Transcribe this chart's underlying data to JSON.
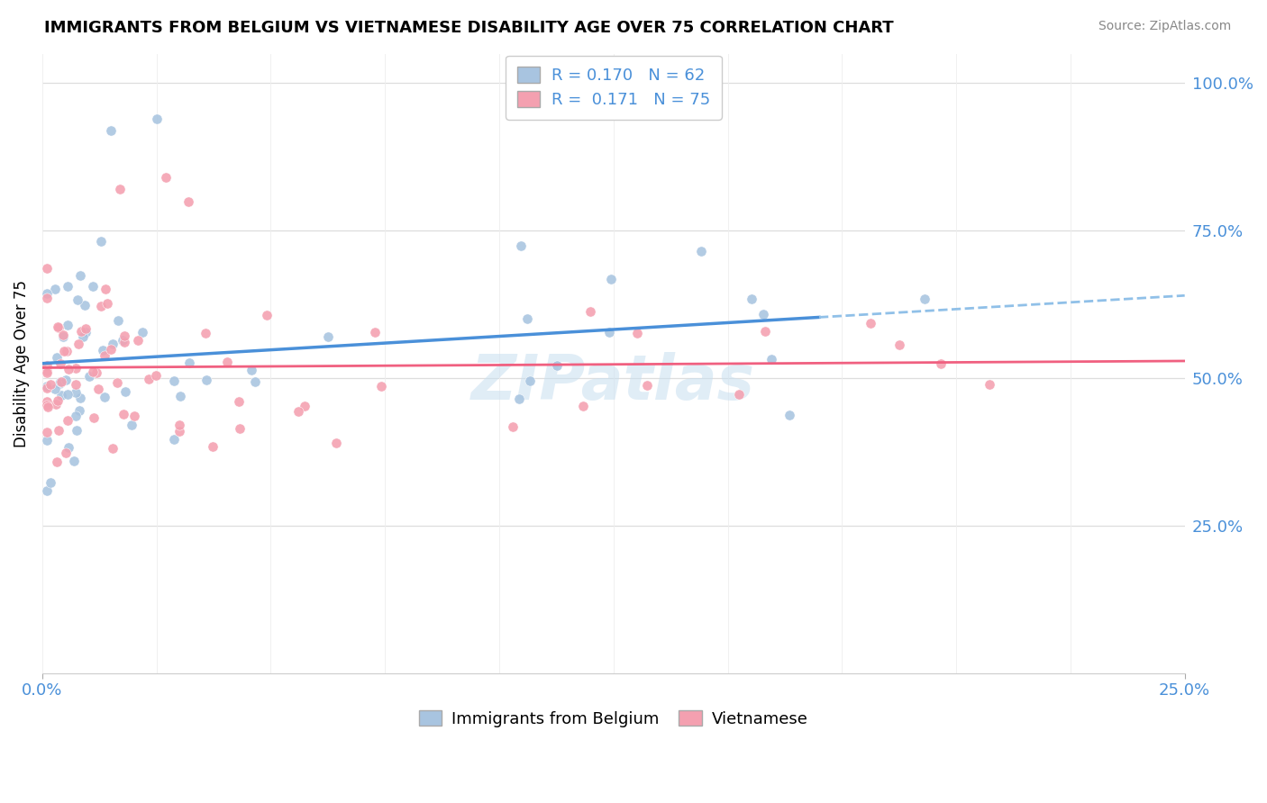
{
  "title": "IMMIGRANTS FROM BELGIUM VS VIETNAMESE DISABILITY AGE OVER 75 CORRELATION CHART",
  "source": "Source: ZipAtlas.com",
  "ylabel": "Disability Age Over 75",
  "legend1_r": "0.170",
  "legend1_n": "62",
  "legend2_r": "0.171",
  "legend2_n": "75",
  "legend_label1": "Immigrants from Belgium",
  "legend_label2": "Vietnamese",
  "xlim": [
    0.0,
    0.25
  ],
  "ylim": [
    0.0,
    1.05
  ],
  "blue_color": "#a8c4e0",
  "pink_color": "#f4a0b0",
  "line_blue": "#4a90d9",
  "line_pink": "#f06080",
  "dashed_blue": "#90c0e8"
}
